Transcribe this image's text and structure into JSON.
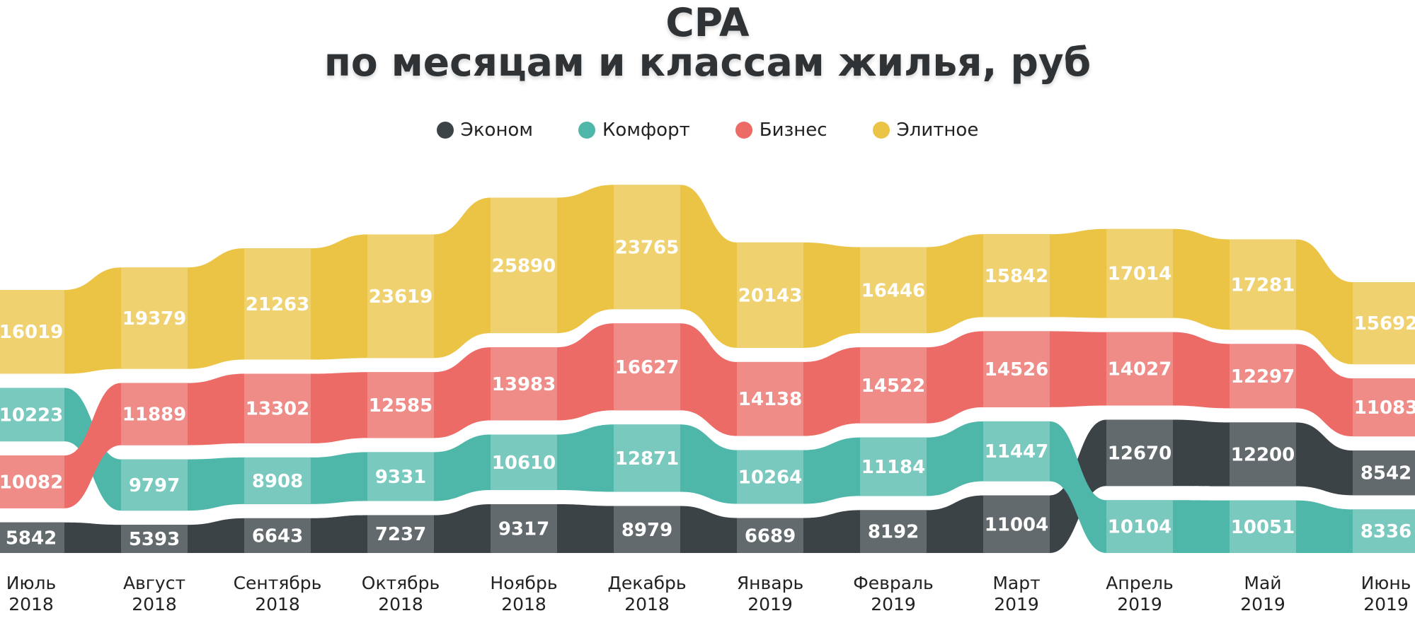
{
  "chart_data": {
    "type": "area",
    "title_line1": "CPA",
    "title_line2": "по месяцам и классам жилья, руб",
    "legend_position": "top",
    "categories": [
      [
        "Июль",
        "2018"
      ],
      [
        "Август",
        "2018"
      ],
      [
        "Сентябрь",
        "2018"
      ],
      [
        "Октябрь",
        "2018"
      ],
      [
        "Ноябрь",
        "2018"
      ],
      [
        "Декабрь",
        "2018"
      ],
      [
        "Январь",
        "2019"
      ],
      [
        "Февраль",
        "2019"
      ],
      [
        "Март",
        "2019"
      ],
      [
        "Апрель",
        "2019"
      ],
      [
        "Май",
        "2019"
      ],
      [
        "Июнь",
        "2019"
      ]
    ],
    "series": [
      {
        "name": "Эконом",
        "color": "#3b4346",
        "light": "#626a6d",
        "values": [
          5842,
          5393,
          6643,
          7237,
          9317,
          8979,
          6689,
          8192,
          11004,
          12670,
          12200,
          8542
        ]
      },
      {
        "name": "Комфорт",
        "color": "#4fb7aa",
        "light": "#79c9bf",
        "values": [
          10223,
          9797,
          8908,
          9331,
          10610,
          12871,
          10264,
          11184,
          11447,
          10104,
          10051,
          8336
        ]
      },
      {
        "name": "Бизнес",
        "color": "#ec6b67",
        "light": "#f08c88",
        "values": [
          10082,
          11889,
          13302,
          12585,
          13983,
          16627,
          14138,
          14522,
          14526,
          14027,
          12297,
          11083
        ]
      },
      {
        "name": "Элитное",
        "color": "#ebc446",
        "light": "#efd26f",
        "values": [
          16019,
          19379,
          21263,
          23619,
          25890,
          23765,
          20143,
          16446,
          15842,
          17014,
          17281,
          15692
        ]
      }
    ]
  }
}
